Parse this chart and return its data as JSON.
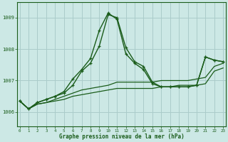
{
  "title": "Graphe pression niveau de la mer (hPa)",
  "background_color": "#cce8e5",
  "grid_color": "#aaccca",
  "line_color": "#1a5c1a",
  "xlim": [
    -0.3,
    23.3
  ],
  "ylim": [
    1005.55,
    1009.5
  ],
  "yticks": [
    1006,
    1007,
    1008,
    1009
  ],
  "xticks": [
    0,
    1,
    2,
    3,
    4,
    5,
    6,
    7,
    8,
    9,
    10,
    11,
    12,
    13,
    14,
    15,
    16,
    17,
    18,
    19,
    20,
    21,
    22,
    23
  ],
  "series": [
    {
      "x": [
        0,
        1,
        2,
        3,
        4,
        5,
        6,
        7,
        8,
        9,
        10,
        11,
        12,
        13,
        14,
        15,
        16,
        17,
        18,
        19,
        20,
        21,
        22,
        23
      ],
      "y": [
        1006.35,
        1006.1,
        1006.25,
        1006.3,
        1006.35,
        1006.4,
        1006.5,
        1006.55,
        1006.6,
        1006.65,
        1006.7,
        1006.75,
        1006.75,
        1006.75,
        1006.75,
        1006.75,
        1006.8,
        1006.8,
        1006.85,
        1006.85,
        1006.85,
        1006.9,
        1007.3,
        1007.4
      ],
      "marker": false,
      "lw": 0.9
    },
    {
      "x": [
        0,
        1,
        2,
        3,
        4,
        5,
        6,
        7,
        8,
        9,
        10,
        11,
        12,
        13,
        14,
        15,
        16,
        17,
        18,
        19,
        20,
        21,
        22,
        23
      ],
      "y": [
        1006.35,
        1006.1,
        1006.25,
        1006.3,
        1006.4,
        1006.5,
        1006.6,
        1006.7,
        1006.75,
        1006.8,
        1006.85,
        1006.95,
        1006.95,
        1006.95,
        1006.95,
        1006.95,
        1007.0,
        1007.0,
        1007.0,
        1007.0,
        1007.05,
        1007.1,
        1007.45,
        1007.55
      ],
      "marker": false,
      "lw": 0.9
    },
    {
      "x": [
        0,
        1,
        2,
        3,
        4,
        5,
        6,
        7,
        8,
        9,
        10,
        11,
        12,
        13,
        14,
        15,
        16,
        17,
        18,
        19,
        20,
        21,
        22,
        23
      ],
      "y": [
        1006.35,
        1006.1,
        1006.3,
        1006.4,
        1006.5,
        1006.6,
        1006.85,
        1007.3,
        1007.55,
        1008.1,
        1009.1,
        1009.0,
        1008.05,
        1007.6,
        1007.45,
        1006.95,
        1006.8,
        1006.8,
        1006.8,
        1006.8,
        1006.85,
        1007.75,
        1007.65,
        1007.6
      ],
      "marker": true,
      "lw": 1.0
    },
    {
      "x": [
        0,
        1,
        2,
        3,
        4,
        5,
        6,
        7,
        8,
        9,
        10,
        11,
        12,
        13,
        14,
        15,
        16,
        17,
        18,
        19,
        20,
        21,
        22,
        23
      ],
      "y": [
        1006.35,
        1006.1,
        1006.3,
        1006.4,
        1006.5,
        1006.65,
        1007.05,
        1007.35,
        1007.7,
        1008.6,
        1009.15,
        1008.95,
        1007.85,
        1007.55,
        1007.35,
        1006.9,
        1006.8,
        1006.8,
        1006.8,
        1006.8,
        1006.85,
        1007.75,
        1007.65,
        1007.6
      ],
      "marker": true,
      "lw": 1.0
    }
  ]
}
